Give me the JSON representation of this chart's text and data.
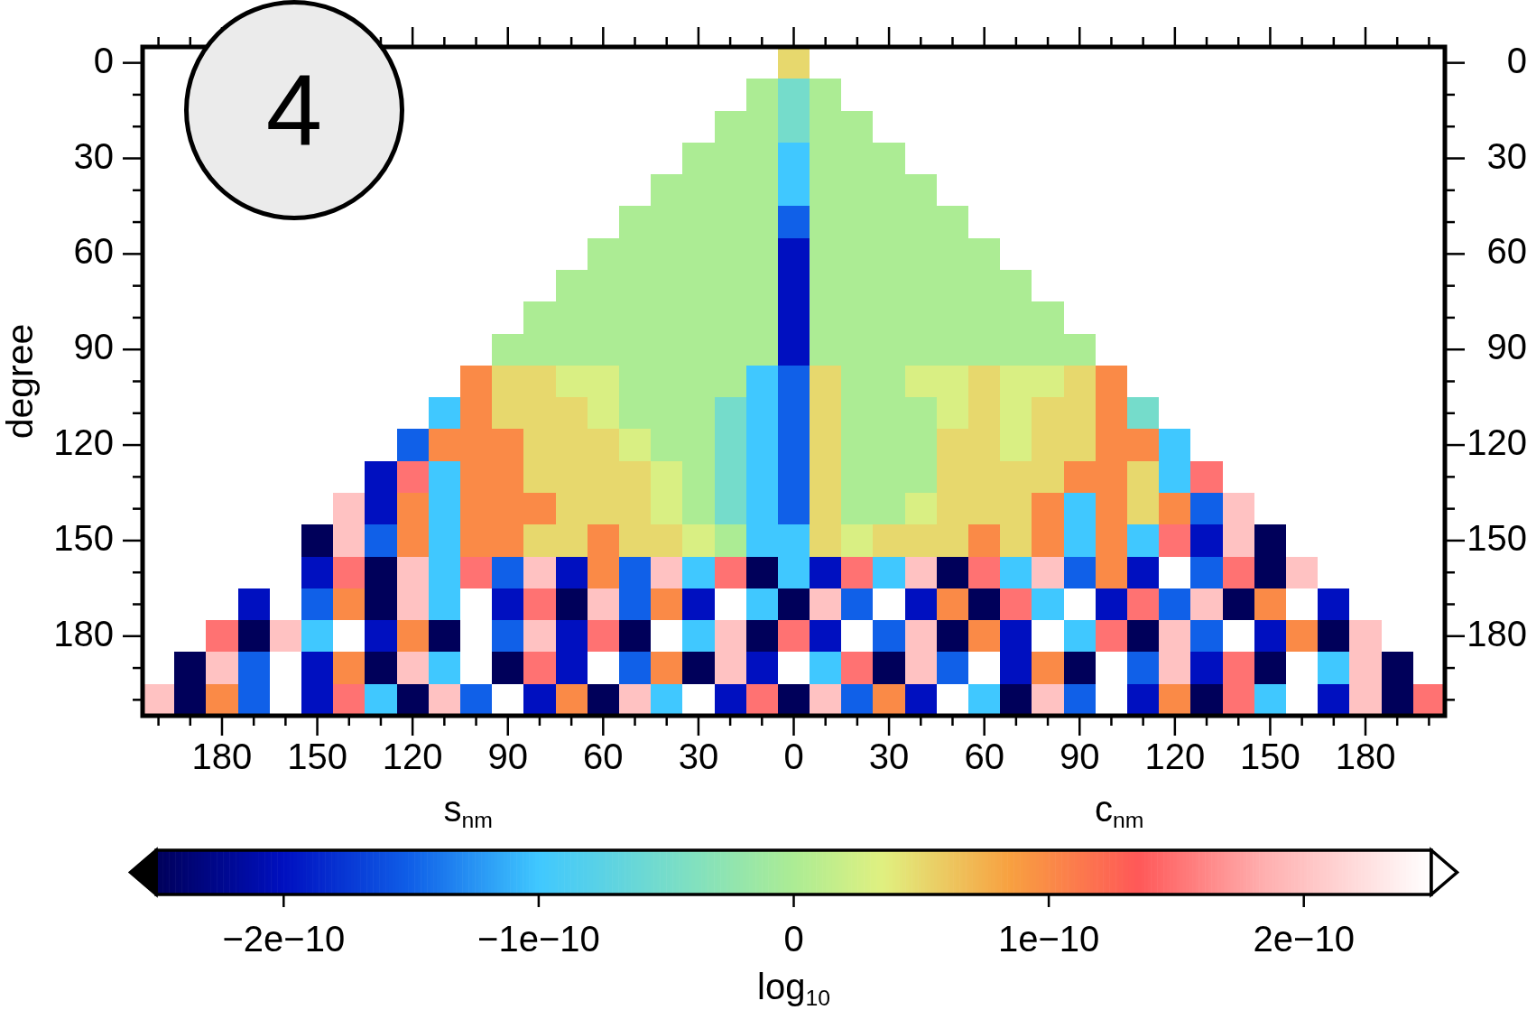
{
  "chart_data": {
    "type": "heatmap",
    "ylabel": "degree",
    "clabel": "log$_{10}$",
    "annotations": [
      "4",
      "s$_{nm}$",
      "c$_{nm}$"
    ],
    "categories": [
      null,
      null,
      "180",
      null,
      null,
      "150",
      null,
      null,
      "120",
      null,
      null,
      "90",
      null,
      null,
      "60",
      null,
      null,
      "30",
      null,
      null,
      "0",
      null,
      null,
      "30",
      null,
      null,
      "60",
      null,
      null,
      "90",
      null,
      null,
      "120",
      null,
      null,
      "150",
      null,
      null,
      "180",
      null,
      null
    ],
    "y_categories": [
      "0",
      null,
      null,
      "30",
      null,
      null,
      "60",
      null,
      null,
      "90",
      null,
      null,
      "120",
      null,
      null,
      "150",
      null,
      null,
      "180",
      null,
      null
    ],
    "y2_categories": [
      "0",
      null,
      null,
      "30",
      null,
      null,
      "60",
      null,
      null,
      "90",
      null,
      null,
      "120",
      null,
      null,
      "150",
      null,
      null,
      "180",
      null,
      null
    ],
    "clim": [
      -2.5e-10,
      2.5e-10
    ],
    "cticks": [
      {
        "value": -2e-10,
        "label": "−2e−10"
      },
      {
        "value": -1e-10,
        "label": "−1e−10"
      },
      {
        "value": 0,
        "label": "0"
      },
      {
        "value": 1e-10,
        "label": "1e−10"
      },
      {
        "value": 2e-10,
        "label": "2e−10"
      }
    ],
    "cells": [
      [
        null,
        null,
        null,
        null,
        null,
        null,
        null,
        null,
        null,
        null,
        null,
        null,
        null,
        null,
        null,
        null,
        null,
        null,
        null,
        null,
        5e-11,
        null,
        null,
        null,
        null,
        null,
        null,
        null,
        null,
        null,
        null,
        null,
        null,
        null,
        null,
        null,
        null,
        null,
        null,
        null,
        null
      ],
      [
        null,
        null,
        null,
        null,
        null,
        null,
        null,
        null,
        null,
        null,
        null,
        null,
        null,
        null,
        null,
        null,
        null,
        null,
        null,
        0,
        -5e-11,
        0,
        null,
        null,
        null,
        null,
        null,
        null,
        null,
        null,
        null,
        null,
        null,
        null,
        null,
        null,
        null,
        null,
        null,
        null,
        null
      ],
      [
        null,
        null,
        null,
        null,
        null,
        null,
        null,
        null,
        null,
        null,
        null,
        null,
        null,
        null,
        null,
        null,
        null,
        null,
        0,
        0,
        -5e-11,
        0,
        0,
        null,
        null,
        null,
        null,
        null,
        null,
        null,
        null,
        null,
        null,
        null,
        null,
        null,
        null,
        null,
        null,
        null,
        null
      ],
      [
        null,
        null,
        null,
        null,
        null,
        null,
        null,
        null,
        null,
        null,
        null,
        null,
        null,
        null,
        null,
        null,
        null,
        0,
        0,
        0,
        -1e-10,
        0,
        0,
        0,
        null,
        null,
        null,
        null,
        null,
        null,
        null,
        null,
        null,
        null,
        null,
        null,
        null,
        null,
        null,
        null,
        null
      ],
      [
        null,
        null,
        null,
        null,
        null,
        null,
        null,
        null,
        null,
        null,
        null,
        null,
        null,
        null,
        null,
        null,
        0,
        0,
        0,
        0,
        -1e-10,
        0,
        0,
        0,
        0,
        null,
        null,
        null,
        null,
        null,
        null,
        null,
        null,
        null,
        null,
        null,
        null,
        null,
        null,
        null,
        null
      ],
      [
        null,
        null,
        null,
        null,
        null,
        null,
        null,
        null,
        null,
        null,
        null,
        null,
        null,
        null,
        null,
        0,
        0,
        0,
        0,
        0,
        -1.5e-10,
        0,
        0,
        0,
        0,
        0,
        null,
        null,
        null,
        null,
        null,
        null,
        null,
        null,
        null,
        null,
        null,
        null,
        null,
        null,
        null
      ],
      [
        null,
        null,
        null,
        null,
        null,
        null,
        null,
        null,
        null,
        null,
        null,
        null,
        null,
        null,
        0,
        0,
        0,
        0,
        0,
        0,
        -2e-10,
        0,
        0,
        0,
        0,
        0,
        0,
        null,
        null,
        null,
        null,
        null,
        null,
        null,
        null,
        null,
        null,
        null,
        null,
        null,
        null
      ],
      [
        null,
        null,
        null,
        null,
        null,
        null,
        null,
        null,
        null,
        null,
        null,
        null,
        null,
        0,
        0,
        0,
        0,
        0,
        0,
        0,
        -2e-10,
        0,
        0,
        0,
        0,
        0,
        0,
        0,
        null,
        null,
        null,
        null,
        null,
        null,
        null,
        null,
        null,
        null,
        null,
        null,
        null
      ],
      [
        null,
        null,
        null,
        null,
        null,
        null,
        null,
        null,
        null,
        null,
        null,
        null,
        0,
        0,
        0,
        0,
        0,
        0,
        0,
        0,
        -2e-10,
        0,
        0,
        0,
        0,
        0,
        0,
        0,
        0,
        null,
        null,
        null,
        null,
        null,
        null,
        null,
        null,
        null,
        null,
        null,
        null
      ],
      [
        null,
        null,
        null,
        null,
        null,
        null,
        null,
        null,
        null,
        null,
        null,
        0,
        0,
        0,
        0,
        0,
        0,
        0,
        0,
        0,
        -2e-10,
        0,
        0,
        0,
        0,
        0,
        0,
        0,
        0,
        0,
        null,
        null,
        null,
        null,
        null,
        null,
        null,
        null,
        null,
        null,
        null
      ],
      [
        null,
        null,
        null,
        null,
        null,
        null,
        null,
        null,
        null,
        null,
        1e-10,
        5e-11,
        5e-11,
        3e-11,
        3e-11,
        0,
        0,
        0,
        0,
        -1e-10,
        -1.5e-10,
        5e-11,
        0,
        0,
        3e-11,
        3e-11,
        5e-11,
        3e-11,
        3e-11,
        5e-11,
        1e-10,
        null,
        null,
        null,
        null,
        null,
        null,
        null,
        null,
        null,
        null
      ],
      [
        null,
        null,
        null,
        null,
        null,
        null,
        null,
        null,
        null,
        -1e-10,
        1e-10,
        5e-11,
        5e-11,
        5e-11,
        3e-11,
        0,
        0,
        0,
        -5e-11,
        -1e-10,
        -1.5e-10,
        5e-11,
        0,
        0,
        0,
        3e-11,
        5e-11,
        3e-11,
        5e-11,
        5e-11,
        1e-10,
        -5e-11,
        null,
        null,
        null,
        null,
        null,
        null,
        null,
        null,
        null
      ],
      [
        null,
        null,
        null,
        null,
        null,
        null,
        null,
        null,
        -1.5e-10,
        1e-10,
        1e-10,
        1e-10,
        5e-11,
        5e-11,
        5e-11,
        3e-11,
        0,
        0,
        -5e-11,
        -1e-10,
        -1.5e-10,
        5e-11,
        0,
        0,
        0,
        5e-11,
        5e-11,
        3e-11,
        5e-11,
        5e-11,
        1e-10,
        1e-10,
        -1e-10,
        null,
        null,
        null,
        null,
        null,
        null,
        null,
        null
      ],
      [
        null,
        null,
        null,
        null,
        null,
        null,
        null,
        -2e-10,
        1.5e-10,
        -1e-10,
        1e-10,
        1e-10,
        5e-11,
        5e-11,
        5e-11,
        5e-11,
        3e-11,
        0,
        -5e-11,
        -1e-10,
        -1.5e-10,
        5e-11,
        0,
        0,
        0,
        5e-11,
        5e-11,
        5e-11,
        5e-11,
        1e-10,
        1e-10,
        5e-11,
        -1e-10,
        1.5e-10,
        null,
        null,
        null,
        null,
        null,
        null,
        null
      ],
      [
        null,
        null,
        null,
        null,
        null,
        null,
        2e-10,
        -2e-10,
        1e-10,
        -1e-10,
        1e-10,
        1e-10,
        1e-10,
        5e-11,
        5e-11,
        5e-11,
        3e-11,
        0,
        -5e-11,
        -1e-10,
        -1.5e-10,
        5e-11,
        0,
        0,
        3e-11,
        5e-11,
        5e-11,
        5e-11,
        1e-10,
        -1e-10,
        1e-10,
        5e-11,
        1e-10,
        -1.5e-10,
        2e-10,
        null,
        null,
        null,
        null,
        null,
        null
      ],
      [
        null,
        null,
        null,
        null,
        null,
        -2.5e-10,
        2e-10,
        -1.5e-10,
        1e-10,
        -1e-10,
        1e-10,
        1e-10,
        5e-11,
        5e-11,
        1e-10,
        5e-11,
        5e-11,
        3e-11,
        0,
        -1e-10,
        -1e-10,
        5e-11,
        3e-11,
        5e-11,
        5e-11,
        5e-11,
        1e-10,
        5e-11,
        1e-10,
        -1e-10,
        1e-10,
        -1e-10,
        1.5e-10,
        -2e-10,
        2e-10,
        -2.5e-10,
        null,
        null,
        null,
        null,
        null
      ],
      [
        null,
        null,
        null,
        null,
        2.5e-10,
        -2e-10,
        1.5e-10,
        -2.5e-10,
        2e-10,
        -1e-10,
        1.5e-10,
        -1.5e-10,
        2e-10,
        -2e-10,
        1e-10,
        -1.5e-10,
        2e-10,
        -1e-10,
        1.5e-10,
        -2.5e-10,
        -1e-10,
        -2e-10,
        1.5e-10,
        -1e-10,
        2e-10,
        -2.5e-10,
        1.5e-10,
        -1e-10,
        2e-10,
        -1.5e-10,
        1e-10,
        -2e-10,
        2.5e-10,
        -1.5e-10,
        1.5e-10,
        -2.5e-10,
        2e-10,
        null,
        null,
        null,
        null
      ],
      [
        null,
        null,
        null,
        -2e-10,
        2.5e-10,
        -1.5e-10,
        1e-10,
        -2.5e-10,
        2e-10,
        -1e-10,
        2.5e-10,
        -2e-10,
        1.5e-10,
        -2.5e-10,
        2e-10,
        -1.5e-10,
        1e-10,
        -2e-10,
        2.5e-10,
        -1e-10,
        -2.5e-10,
        2e-10,
        -1.5e-10,
        2.5e-10,
        -2e-10,
        1e-10,
        -2.5e-10,
        1.5e-10,
        -1e-10,
        2.5e-10,
        -2e-10,
        1.5e-10,
        -1.5e-10,
        2e-10,
        -2.5e-10,
        1e-10,
        2.5e-10,
        -2e-10,
        null,
        null,
        null
      ],
      [
        null,
        null,
        1.5e-10,
        -2.5e-10,
        2e-10,
        -1e-10,
        2.5e-10,
        -2e-10,
        1e-10,
        -2.5e-10,
        2.5e-10,
        -1.5e-10,
        2e-10,
        -2e-10,
        1.5e-10,
        -2.5e-10,
        2.5e-10,
        -1e-10,
        2e-10,
        -2.5e-10,
        1.5e-10,
        -2e-10,
        2.5e-10,
        -1.5e-10,
        2e-10,
        -2.5e-10,
        1e-10,
        -2e-10,
        2.5e-10,
        -1e-10,
        1.5e-10,
        -2.5e-10,
        2e-10,
        -1.5e-10,
        2.5e-10,
        -2e-10,
        1e-10,
        -2.5e-10,
        2e-10,
        null,
        null
      ],
      [
        null,
        -2.5e-10,
        2e-10,
        -1.5e-10,
        2.5e-10,
        -2e-10,
        1e-10,
        -2.5e-10,
        2e-10,
        -1e-10,
        2.5e-10,
        -2.5e-10,
        1.5e-10,
        -2e-10,
        2.5e-10,
        -1.5e-10,
        1e-10,
        -2.5e-10,
        2e-10,
        -2e-10,
        2.5e-10,
        -1e-10,
        1.5e-10,
        -2.5e-10,
        2e-10,
        -1.5e-10,
        2.5e-10,
        -2e-10,
        1e-10,
        -2.5e-10,
        2.5e-10,
        -1.5e-10,
        2e-10,
        -2e-10,
        1.5e-10,
        -2.5e-10,
        2.5e-10,
        -1e-10,
        2e-10,
        -2.5e-10,
        null
      ],
      [
        2e-10,
        -2.5e-10,
        1e-10,
        -1.5e-10,
        2.5e-10,
        -2e-10,
        1.5e-10,
        -1e-10,
        -2.5e-10,
        2e-10,
        -1.5e-10,
        2.5e-10,
        -2e-10,
        1e-10,
        -2.5e-10,
        2e-10,
        -1e-10,
        2.5e-10,
        -2e-10,
        1.5e-10,
        -2.5e-10,
        2e-10,
        -1.5e-10,
        1e-10,
        -2e-10,
        2.5e-10,
        -1e-10,
        -2.5e-10,
        2e-10,
        -1.5e-10,
        2.5e-10,
        -2e-10,
        1e-10,
        -2.5e-10,
        1.5e-10,
        -1e-10,
        2.5e-10,
        -2e-10,
        2e-10,
        -2.5e-10,
        1.5e-10
      ]
    ]
  }
}
